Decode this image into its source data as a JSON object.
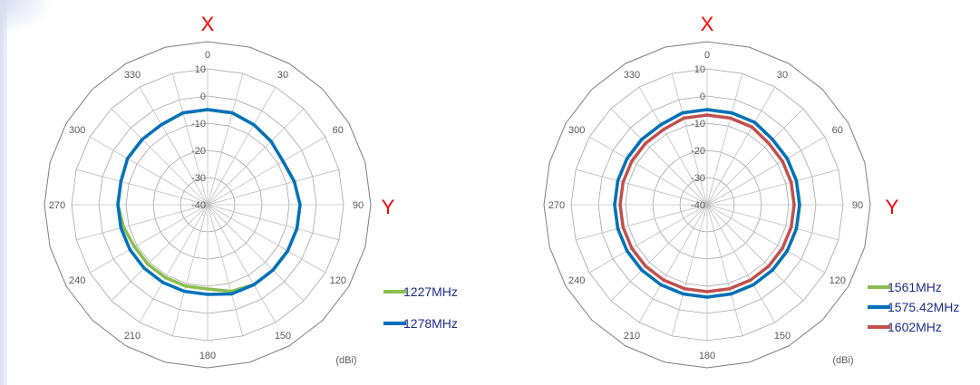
{
  "chart_data": [
    {
      "type": "polar-line",
      "x_axis_label": "X",
      "y_axis_label": "Y",
      "unit": "(dBi)",
      "radial_range": [
        -40,
        10
      ],
      "radial_ticks": [
        10,
        0,
        -10,
        -20,
        -30,
        -40
      ],
      "angle_step_deg": 15,
      "angle_labels": [
        "0",
        "30",
        "60",
        "90",
        "120",
        "150",
        "180",
        "210",
        "240",
        "270",
        "300",
        "330"
      ],
      "series": [
        {
          "name": "1227MHz",
          "color": "#8cbd4f",
          "values": [
            -5,
            -5,
            -6,
            -7,
            -8,
            -7,
            -6,
            -6,
            -6,
            -6,
            -6,
            -7,
            -9,
            -9,
            -9,
            -9,
            -9,
            -8,
            -7,
            -7,
            -6,
            -6,
            -6,
            -5
          ]
        },
        {
          "name": "1278MHz",
          "color": "#0071bb",
          "values": [
            -5,
            -5,
            -6,
            -7,
            -8,
            -7,
            -6,
            -6,
            -6,
            -6,
            -6,
            -6,
            -7,
            -7,
            -7,
            -7,
            -7,
            -7,
            -7,
            -7,
            -6,
            -6,
            -6,
            -5
          ]
        }
      ]
    },
    {
      "type": "polar-line",
      "x_axis_label": "X",
      "y_axis_label": "Y",
      "unit": "(dBi)",
      "radial_range": [
        -40,
        10
      ],
      "radial_ticks": [
        10,
        0,
        -10,
        -20,
        -30,
        -40
      ],
      "angle_step_deg": 15,
      "angle_labels": [
        "0",
        "30",
        "60",
        "90",
        "120",
        "150",
        "180",
        "210",
        "240",
        "270",
        "300",
        "330"
      ],
      "series": [
        {
          "name": "1561MHz",
          "color": "#8cbd4f",
          "values": [
            -5,
            -5,
            -5,
            -6,
            -6,
            -6,
            -6,
            -6,
            -6,
            -6,
            -6,
            -6,
            -6,
            -6,
            -6,
            -6,
            -6,
            -6,
            -6,
            -6,
            -6,
            -6,
            -6,
            -5
          ]
        },
        {
          "name": "1575.42MHz",
          "color": "#0071bb",
          "values": [
            -5,
            -5,
            -5,
            -6,
            -6,
            -6,
            -6,
            -6,
            -6,
            -6,
            -6,
            -6,
            -6,
            -6,
            -6,
            -6,
            -6,
            -6,
            -6,
            -6,
            -6,
            -6,
            -6,
            -5
          ]
        },
        {
          "name": "1602MHz",
          "color": "#c0504d",
          "values": [
            -7,
            -7,
            -7,
            -8,
            -8,
            -8,
            -8,
            -8,
            -8,
            -8,
            -8,
            -8,
            -8,
            -8,
            -8,
            -8,
            -8,
            -8,
            -8,
            -8,
            -8,
            -8,
            -8,
            -7
          ]
        }
      ]
    }
  ]
}
